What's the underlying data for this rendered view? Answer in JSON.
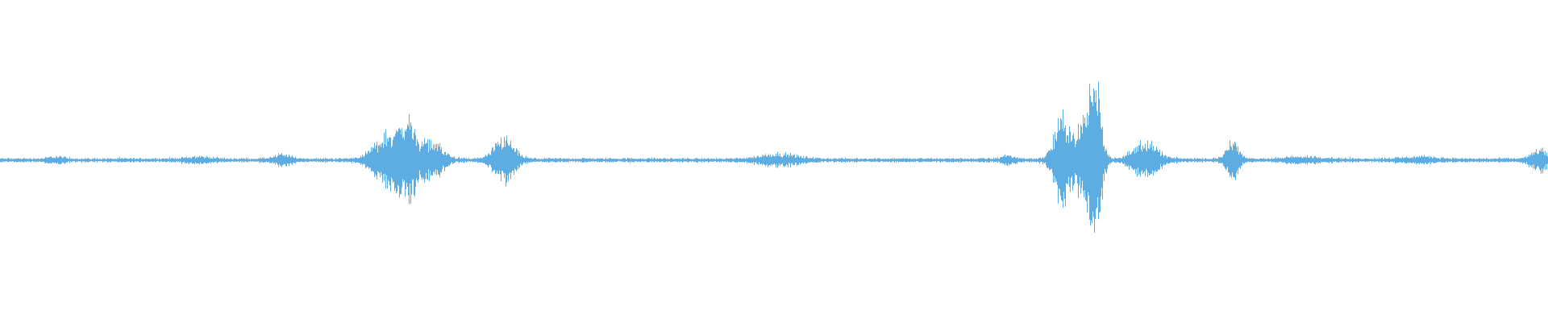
{
  "waveform": {
    "color": "#5dade2",
    "background": "#ffffff",
    "icon": "audio-waveform"
  }
}
